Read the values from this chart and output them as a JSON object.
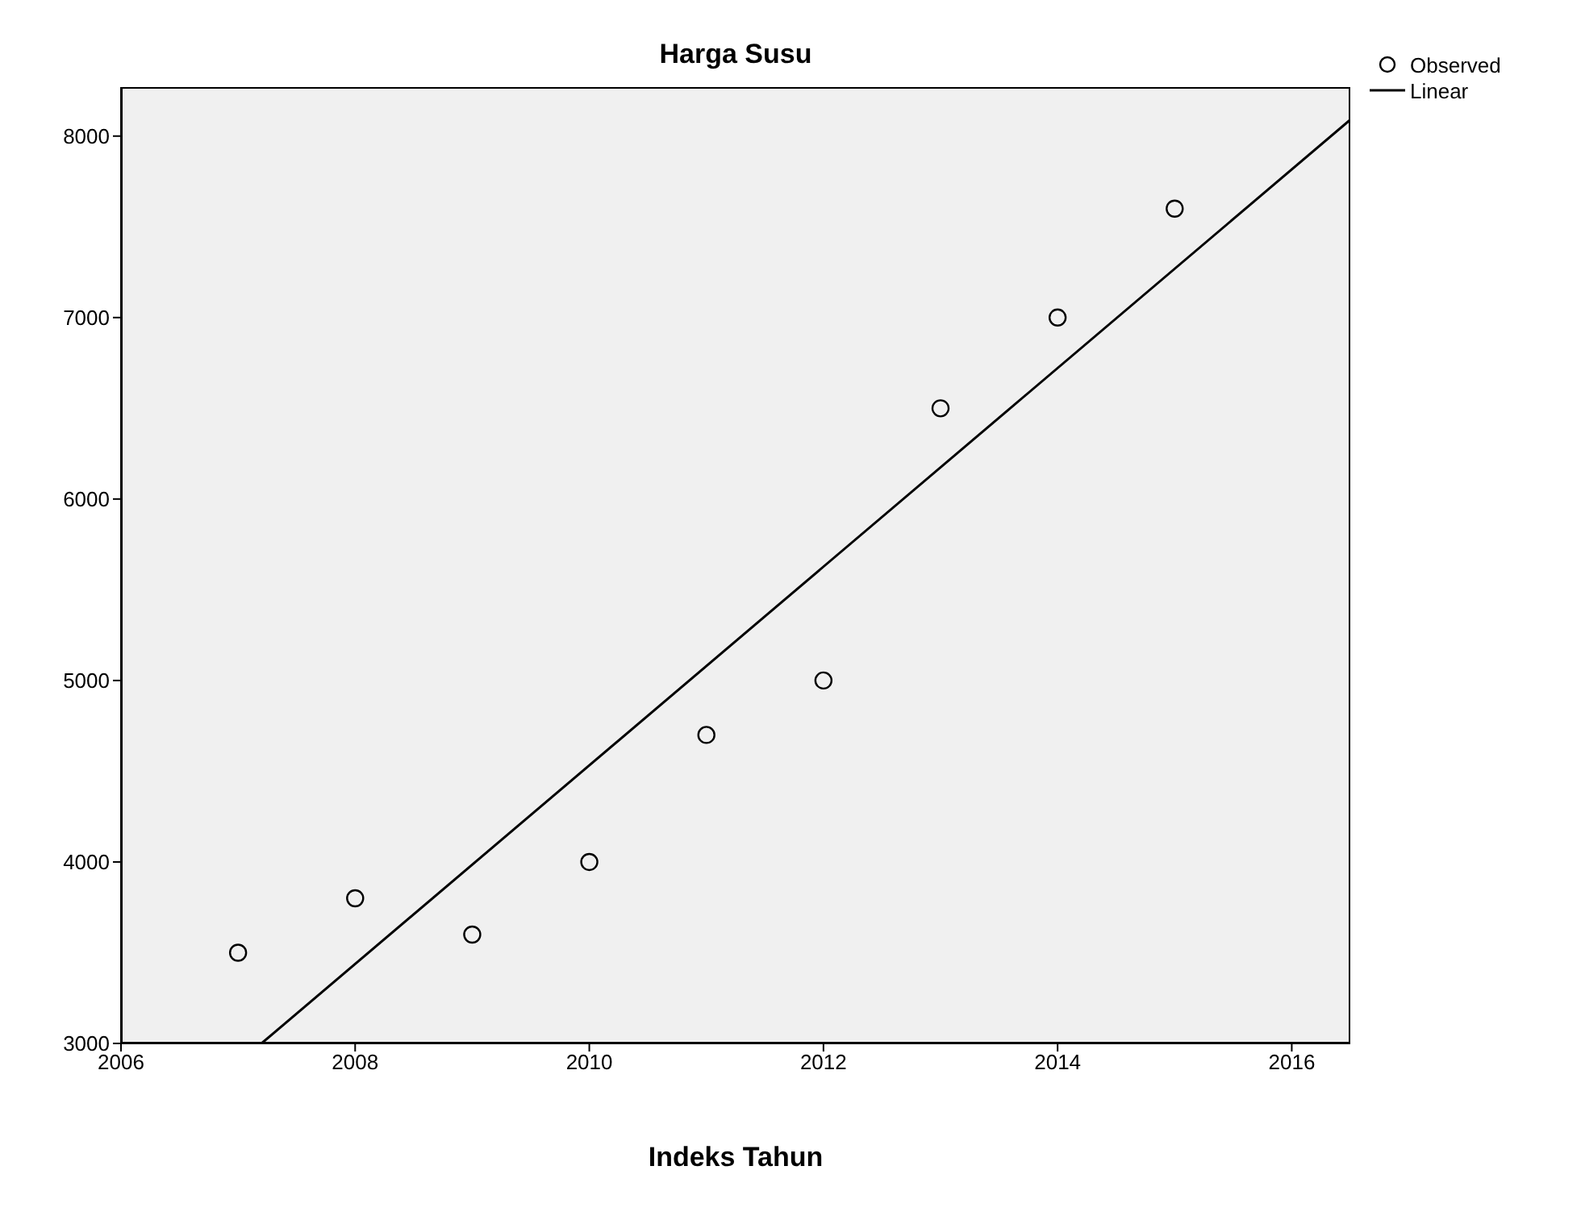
{
  "chart_data": {
    "type": "scatter",
    "title": "Harga Susu",
    "xlabel": "Indeks Tahun",
    "xlim": [
      2006,
      2016.5
    ],
    "xticks": [
      2006,
      2008,
      2010,
      2012,
      2014,
      2016
    ],
    "ylim": [
      3000,
      8270
    ],
    "yticks": [
      3000,
      4000,
      5000,
      6000,
      7000,
      8000
    ],
    "grid": false,
    "legend": "top right",
    "series": [
      {
        "name": "Observed",
        "marker": "circle",
        "color": "#000000",
        "x": [
          2007,
          2008,
          2009,
          2010,
          2011,
          2012,
          2013,
          2014,
          2015
        ],
        "values": [
          3500,
          3800,
          3600,
          4000,
          4700,
          5000,
          6500,
          7000,
          7600
        ]
      },
      {
        "name": "Linear",
        "type": "line",
        "marker": "none",
        "color": "#000000",
        "x": [
          2007.2,
          2016.5
        ],
        "values": [
          3000,
          8090
        ]
      }
    ]
  }
}
